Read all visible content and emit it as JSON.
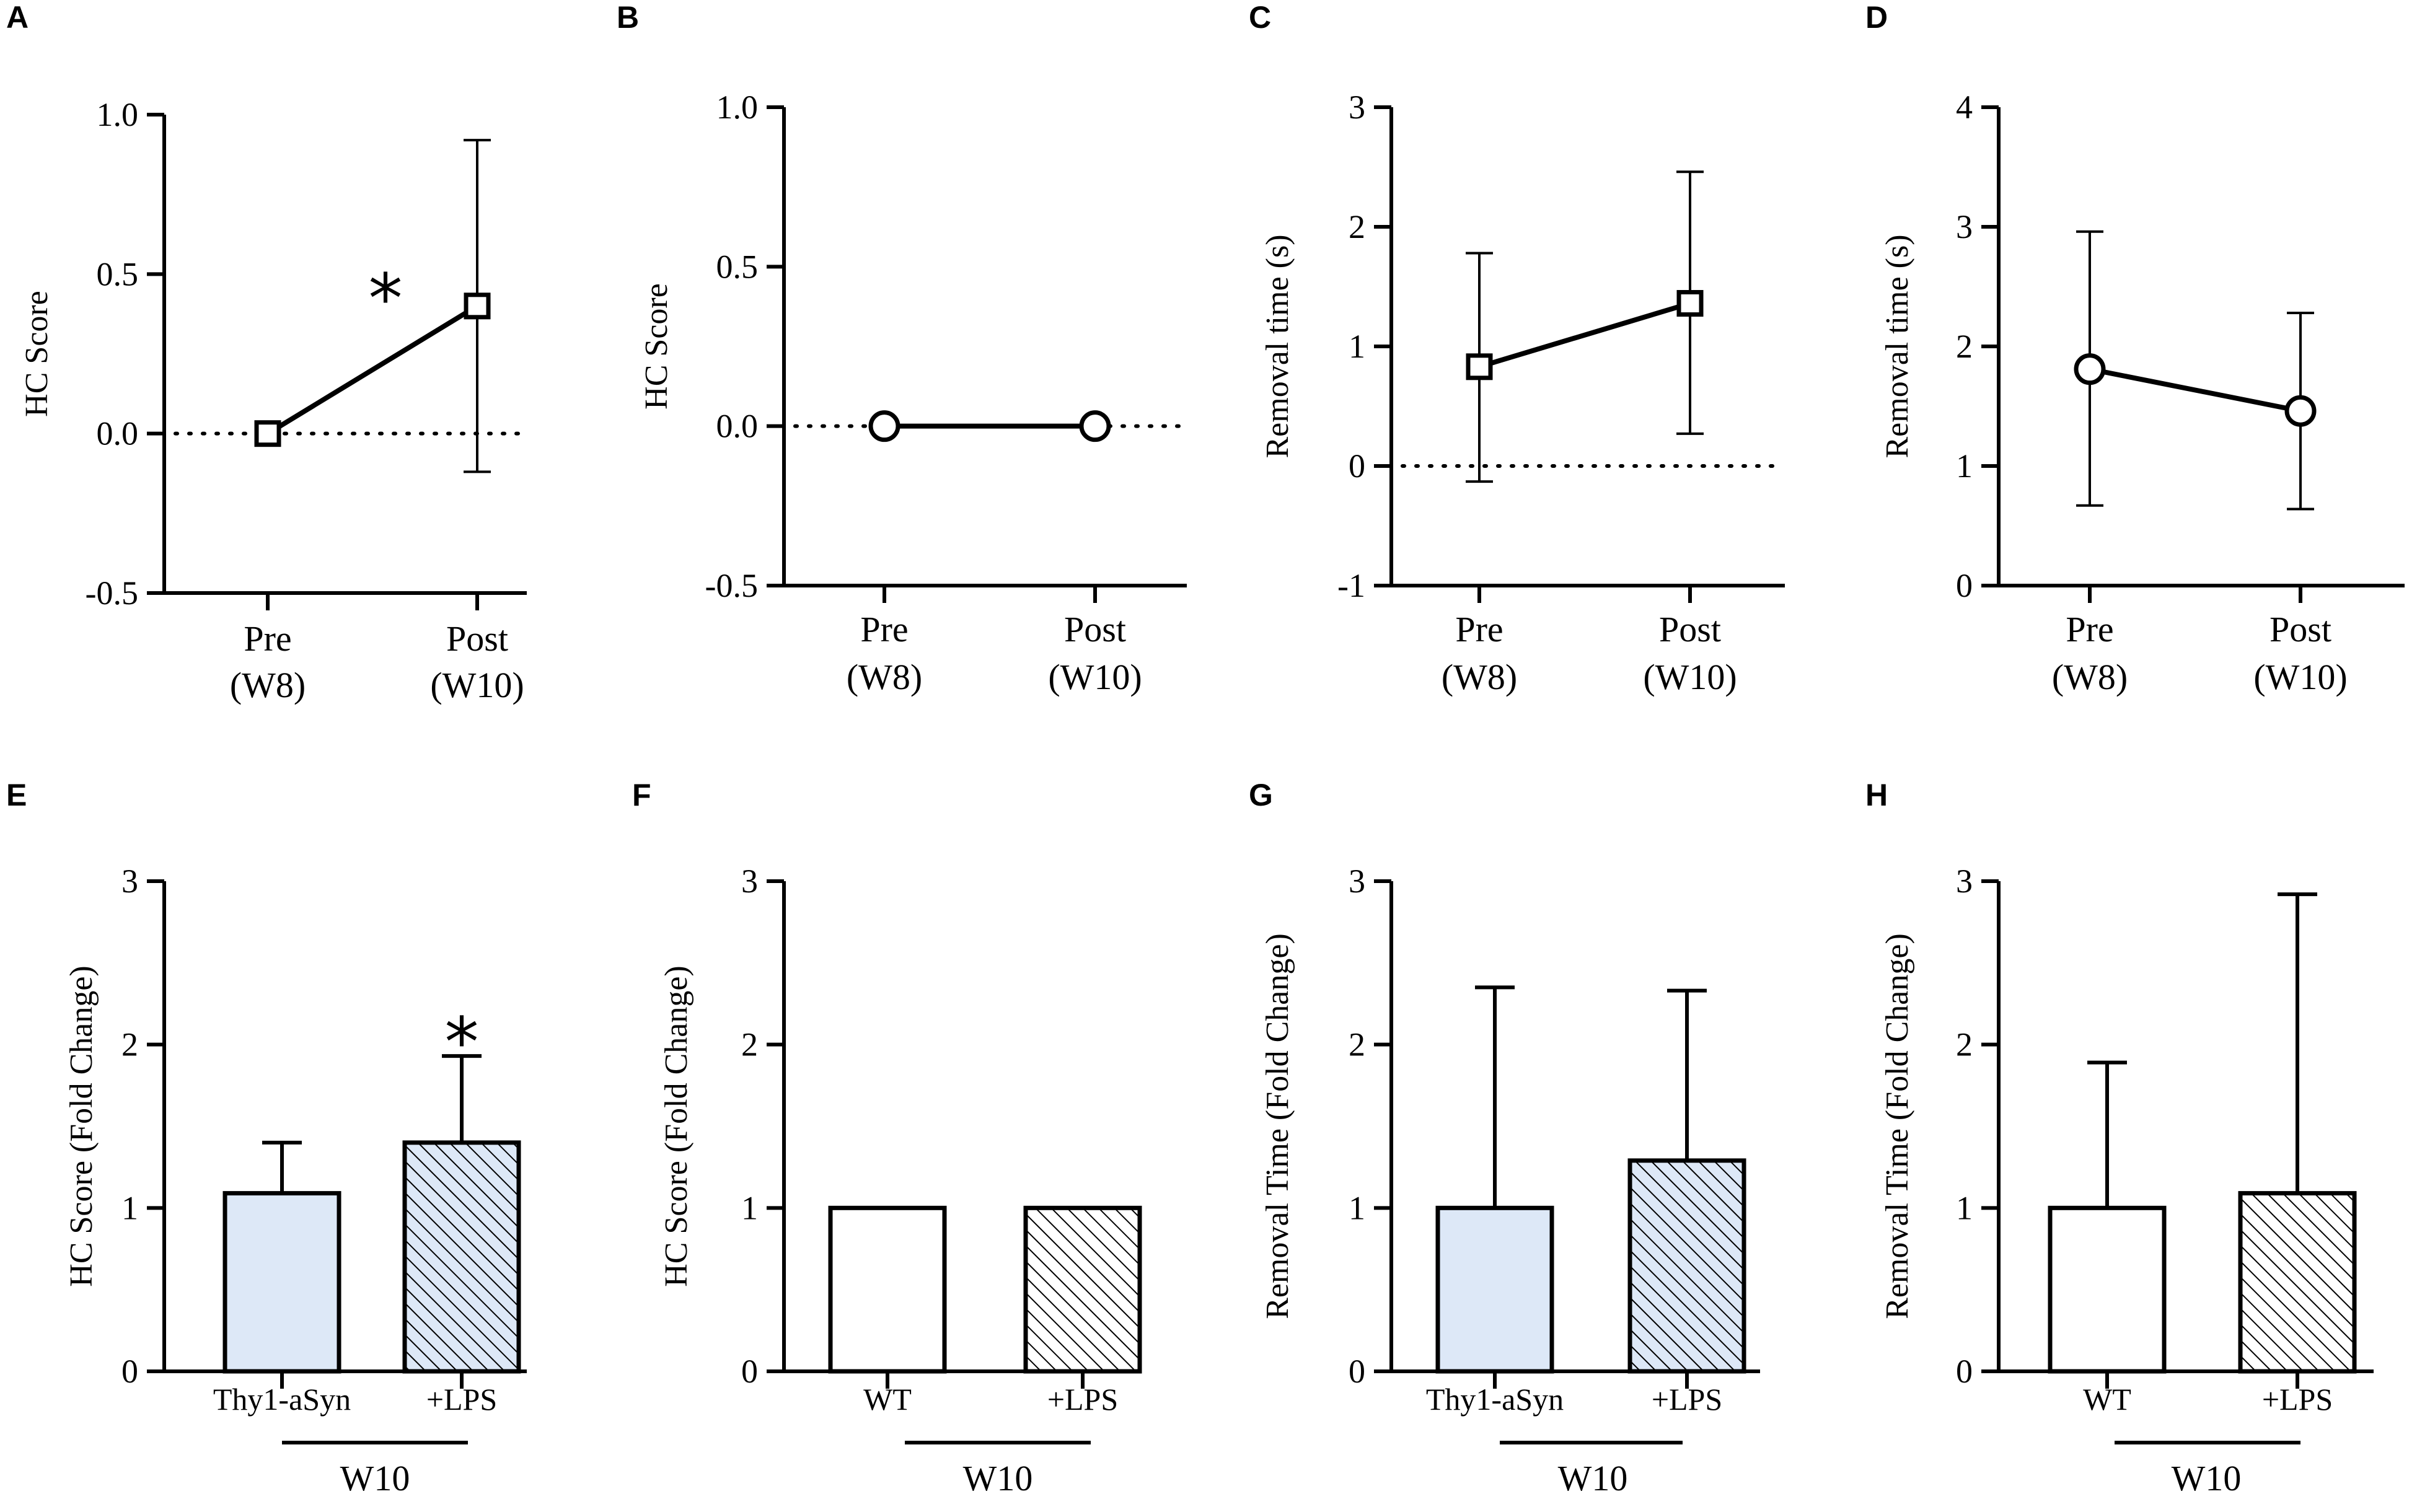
{
  "chart_data": [
    {
      "panel": "A",
      "type": "line",
      "marker": "square",
      "ylabel": "HC Score",
      "ylim": [
        -0.5,
        1.0
      ],
      "yticks": [
        -0.5,
        0.0,
        0.5,
        1.0
      ],
      "ytick_labels": [
        "-0.5",
        "0.0",
        "0.5",
        "1.0"
      ],
      "categories": [
        [
          "Pre",
          "(W8)"
        ],
        [
          "Post",
          "(W10)"
        ]
      ],
      "values": [
        0.0,
        0.4
      ],
      "err_low": [
        0.0,
        -0.12
      ],
      "err_high": [
        0.0,
        0.92
      ],
      "reference_line": 0,
      "annotation": "*"
    },
    {
      "panel": "B",
      "type": "line",
      "marker": "circle",
      "ylabel": "HC Score",
      "ylim": [
        -0.5,
        1.0
      ],
      "yticks": [
        -0.5,
        0.0,
        0.5,
        1.0
      ],
      "ytick_labels": [
        "-0.5",
        "0.0",
        "0.5",
        "1.0"
      ],
      "categories": [
        [
          "Pre",
          "(W8)"
        ],
        [
          "Post",
          "(W10)"
        ]
      ],
      "values": [
        0.0,
        0.0
      ],
      "err_low": [
        0.0,
        0.0
      ],
      "err_high": [
        0.0,
        0.0
      ],
      "reference_line": 0,
      "annotation": ""
    },
    {
      "panel": "C",
      "type": "line",
      "marker": "square",
      "ylabel": "Removal time (s)",
      "ylim": [
        -1,
        3
      ],
      "yticks": [
        -1,
        0,
        1,
        2,
        3
      ],
      "ytick_labels": [
        "-1",
        "0",
        "1",
        "2",
        "3"
      ],
      "categories": [
        [
          "Pre",
          "(W8)"
        ],
        [
          "Post",
          "(W10)"
        ]
      ],
      "values": [
        0.83,
        1.36
      ],
      "err_low": [
        -0.13,
        0.27
      ],
      "err_high": [
        1.78,
        2.46
      ],
      "reference_line": 0,
      "annotation": ""
    },
    {
      "panel": "D",
      "type": "line",
      "marker": "circle",
      "ylabel": "Removal time (s)",
      "ylim": [
        0,
        4
      ],
      "yticks": [
        0,
        1,
        2,
        3,
        4
      ],
      "ytick_labels": [
        "0",
        "1",
        "2",
        "3",
        "4"
      ],
      "categories": [
        [
          "Pre",
          "(W8)"
        ],
        [
          "Post",
          "(W10)"
        ]
      ],
      "values": [
        1.81,
        1.46
      ],
      "err_low": [
        0.67,
        0.64
      ],
      "err_high": [
        2.96,
        2.28
      ],
      "reference_line": null,
      "annotation": ""
    },
    {
      "panel": "E",
      "type": "bar",
      "ylabel": "HC Score (Fold  Change)",
      "ylim": [
        0,
        3
      ],
      "yticks": [
        0,
        1,
        2,
        3
      ],
      "ytick_labels": [
        "0",
        "1",
        "2",
        "3"
      ],
      "categories": [
        "Thy1-aSyn",
        "+LPS"
      ],
      "group_label": "W10",
      "values": [
        1.09,
        1.4
      ],
      "err_high": [
        1.4,
        1.93
      ],
      "fills": [
        "light-blue",
        "light-blue-hatched"
      ],
      "annotation": "*"
    },
    {
      "panel": "F",
      "type": "bar",
      "ylabel": "HC Score (Fold  Change)",
      "ylim": [
        0,
        3
      ],
      "yticks": [
        0,
        1,
        2,
        3
      ],
      "ytick_labels": [
        "0",
        "1",
        "2",
        "3"
      ],
      "categories": [
        "WT",
        "+LPS"
      ],
      "group_label": "W10",
      "values": [
        1.0,
        1.0
      ],
      "err_high": [
        1.0,
        1.0
      ],
      "fills": [
        "white",
        "white-hatched"
      ],
      "annotation": ""
    },
    {
      "panel": "G",
      "type": "bar",
      "ylabel": "Removal Time (Fold Change)",
      "ylim": [
        0,
        3
      ],
      "yticks": [
        0,
        1,
        2,
        3
      ],
      "ytick_labels": [
        "0",
        "1",
        "2",
        "3"
      ],
      "categories": [
        "Thy1-aSyn",
        "+LPS"
      ],
      "group_label": "W10",
      "values": [
        1.0,
        1.29
      ],
      "err_high": [
        2.35,
        2.33
      ],
      "fills": [
        "light-blue",
        "light-blue-hatched"
      ],
      "annotation": ""
    },
    {
      "panel": "H",
      "type": "bar",
      "ylabel": "Removal Time (Fold Change)",
      "ylim": [
        0,
        3
      ],
      "yticks": [
        0,
        1,
        2,
        3
      ],
      "ytick_labels": [
        "0",
        "1",
        "2",
        "3"
      ],
      "categories": [
        "WT",
        "+LPS"
      ],
      "group_label": "W10",
      "values": [
        1.0,
        1.09
      ],
      "err_high": [
        1.89,
        2.92
      ],
      "fills": [
        "white",
        "white-hatched"
      ],
      "annotation": ""
    }
  ],
  "colors": {
    "axis": "#000000",
    "light_blue": "#dde8f7",
    "white": "#ffffff"
  }
}
